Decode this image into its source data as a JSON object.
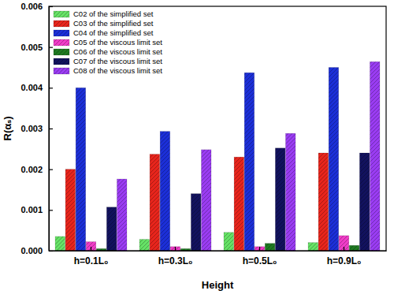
{
  "chart_data": {
    "type": "bar",
    "x_label": "Height",
    "y_label": "R(αₛ)",
    "categories": [
      "h=0.1L₀",
      "h=0.3L₀",
      "h=0.5L₀",
      "h=0.9L₀"
    ],
    "series": [
      {
        "name": "C02 of the simplified set",
        "color": "#66e266",
        "values": [
          0.00035,
          0.00028,
          0.00045,
          0.0002
        ]
      },
      {
        "name": "C03 of the simplified set",
        "color": "#e8251c",
        "values": [
          0.002,
          0.00237,
          0.0023,
          0.0024
        ]
      },
      {
        "name": "C04 of the simplified set",
        "color": "#1c2fd8",
        "values": [
          0.004,
          0.00293,
          0.00437,
          0.0045
        ]
      },
      {
        "name": "C05 of the viscous limit set",
        "color": "#f03cc8",
        "values": [
          0.00022,
          0.0001,
          0.0001,
          0.00037
        ]
      },
      {
        "name": "C06 of the viscous limit set",
        "color": "#1f7a22",
        "values": [
          5e-05,
          5e-05,
          0.00018,
          0.00013
        ]
      },
      {
        "name": "C07 of the viscous limit set",
        "color": "#12125e",
        "values": [
          0.00107,
          0.0014,
          0.00252,
          0.0024
        ]
      },
      {
        "name": "C08 of the viscous limit set",
        "color": "#9a3cf2",
        "values": [
          0.00176,
          0.00248,
          0.00288,
          0.00464
        ]
      }
    ],
    "ylim": [
      0,
      0.006
    ],
    "yticks": [
      {
        "value": 0,
        "label": "0.000"
      },
      {
        "value": 0.001,
        "label": "0.001"
      },
      {
        "value": 0.002,
        "label": "0.002"
      },
      {
        "value": 0.003,
        "label": "0.003"
      },
      {
        "value": 0.004,
        "label": "0.004"
      },
      {
        "value": 0.005,
        "label": "0.005"
      },
      {
        "value": 0.006,
        "label": "0.006"
      }
    ],
    "grid": false,
    "legend": "upper-left"
  }
}
